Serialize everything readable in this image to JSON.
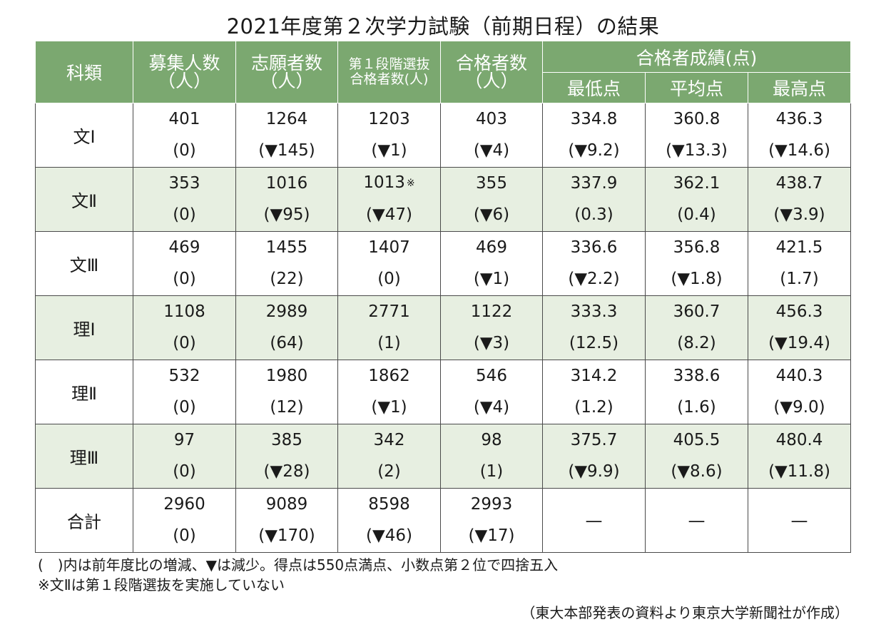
{
  "title": "2021年度第２次学力試験（前期日程）の結果",
  "header": {
    "category": "科類",
    "recruit": [
      "募集人数",
      "（人）"
    ],
    "applicants": [
      "志願者数",
      "（人）"
    ],
    "first_stage": [
      "第１段階選抜",
      "合格者数(人)"
    ],
    "passers": [
      "合格者数",
      "（人）"
    ],
    "scores_group": "合格者成績(点)",
    "min": "最低点",
    "avg": "平均点",
    "max": "最高点"
  },
  "rows": [
    {
      "category": "文Ⅰ",
      "recruit": [
        "401",
        "(0)"
      ],
      "applicants": [
        "1264",
        "(▼145)"
      ],
      "first_stage": [
        "1203",
        "(▼1)"
      ],
      "passers": [
        "403",
        "(▼4)"
      ],
      "min": [
        "334.8",
        "(▼9.2)"
      ],
      "avg": [
        "360.8",
        "(▼13.3)"
      ],
      "max": [
        "436.3",
        "(▼14.6)"
      ]
    },
    {
      "category": "文Ⅱ",
      "recruit": [
        "353",
        "(0)"
      ],
      "applicants": [
        "1016",
        "(▼95)"
      ],
      "first_stage": [
        "1013",
        "(▼47)"
      ],
      "first_stage_mark": "※",
      "passers": [
        "355",
        "(▼6)"
      ],
      "min": [
        "337.9",
        "(0.3)"
      ],
      "avg": [
        "362.1",
        "(0.4)"
      ],
      "max": [
        "438.7",
        "(▼3.9)"
      ]
    },
    {
      "category": "文Ⅲ",
      "recruit": [
        "469",
        "(0)"
      ],
      "applicants": [
        "1455",
        "(22)"
      ],
      "first_stage": [
        "1407",
        "(0)"
      ],
      "passers": [
        "469",
        "(▼1)"
      ],
      "min": [
        "336.6",
        "(▼2.2)"
      ],
      "avg": [
        "356.8",
        "(▼1.8)"
      ],
      "max": [
        "421.5",
        "(1.7)"
      ]
    },
    {
      "category": "理Ⅰ",
      "recruit": [
        "1108",
        "(0)"
      ],
      "applicants": [
        "2989",
        "(64)"
      ],
      "first_stage": [
        "2771",
        "(1)"
      ],
      "passers": [
        "1122",
        "(▼3)"
      ],
      "min": [
        "333.3",
        "(12.5)"
      ],
      "avg": [
        "360.7",
        "(8.2)"
      ],
      "max": [
        "456.3",
        "(▼19.4)"
      ]
    },
    {
      "category": "理Ⅱ",
      "recruit": [
        "532",
        "(0)"
      ],
      "applicants": [
        "1980",
        "(12)"
      ],
      "first_stage": [
        "1862",
        "(▼1)"
      ],
      "passers": [
        "546",
        "(▼4)"
      ],
      "min": [
        "314.2",
        "(1.2)"
      ],
      "avg": [
        "338.6",
        "(1.6)"
      ],
      "max": [
        "440.3",
        "(▼9.0)"
      ]
    },
    {
      "category": "理Ⅲ",
      "recruit": [
        "97",
        "(0)"
      ],
      "applicants": [
        "385",
        "(▼28)"
      ],
      "first_stage": [
        "342",
        "(2)"
      ],
      "passers": [
        "98",
        "(1)"
      ],
      "min": [
        "375.7",
        "(▼9.9)"
      ],
      "avg": [
        "405.5",
        "(▼8.6)"
      ],
      "max": [
        "480.4",
        "(▼11.8)"
      ]
    },
    {
      "category": "合計",
      "recruit": [
        "2960",
        "(0)"
      ],
      "applicants": [
        "9089",
        "(▼170)"
      ],
      "first_stage": [
        "8598",
        "(▼46)"
      ],
      "passers": [
        "2993",
        "(▼17)"
      ],
      "min": "—",
      "avg": "—",
      "max": "—"
    }
  ],
  "notes": [
    "(　)内は前年度比の増減、▼は減少。得点は550点満点、小数点第２位で四捨五入",
    "※文Ⅱは第１段階選抜を実施していない"
  ],
  "source": "（東大本部発表の資料より東京大学新聞社が作成）",
  "colors": {
    "header_green": "#7ba870",
    "row_alt": "#e7efe1"
  }
}
